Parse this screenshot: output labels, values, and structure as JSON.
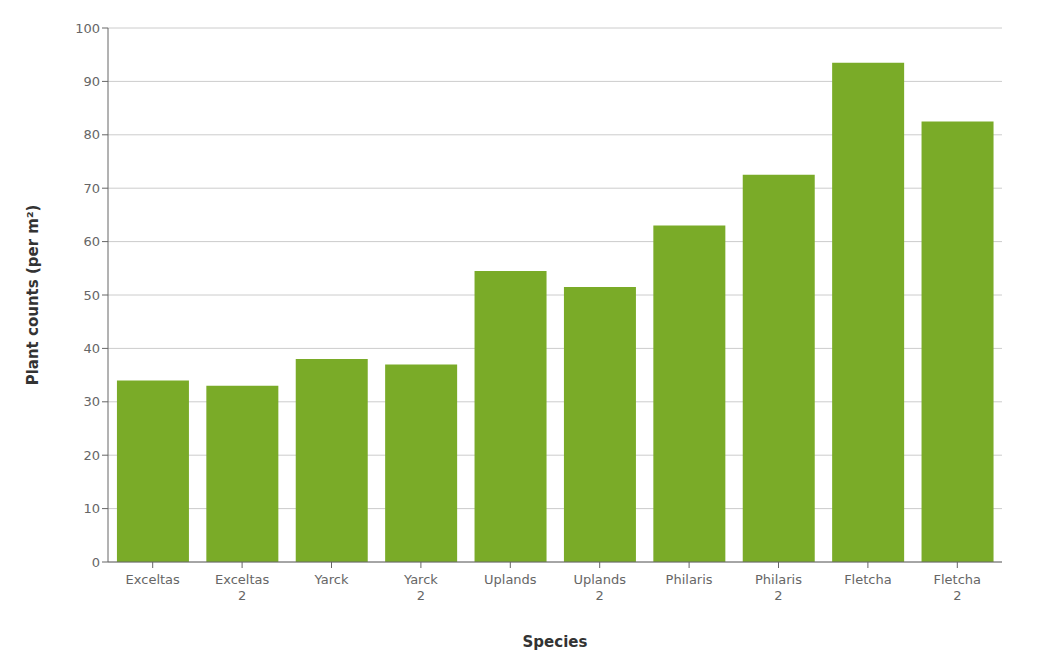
{
  "chart_data": {
    "type": "bar",
    "categories": [
      "Exceltas",
      "Exceltas\n2",
      "Yarck",
      "Yarck\n2",
      "Uplands",
      "Uplands\n2",
      "Philaris",
      "Philaris\n2",
      "Fletcha",
      "Fletcha\n2"
    ],
    "values": [
      34,
      33,
      38,
      37,
      54.5,
      51.5,
      63,
      72.5,
      93.5,
      82.5
    ],
    "color": "#7aab28",
    "xlabel": "Species",
    "ylabel": "Plant counts (per m²)",
    "ylim": [
      0,
      100
    ],
    "yticks": [
      0,
      10,
      20,
      30,
      40,
      50,
      60,
      70,
      80,
      90,
      100
    ],
    "grid": true
  }
}
